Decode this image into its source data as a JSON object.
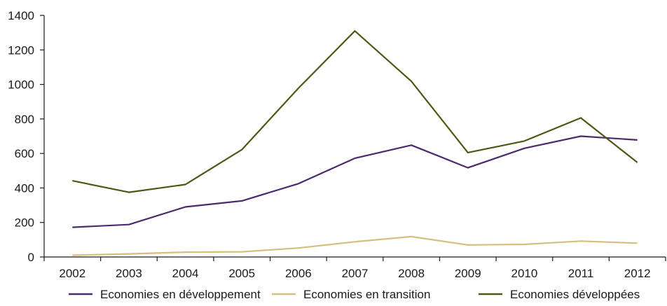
{
  "chart_data": {
    "type": "line",
    "categories": [
      "2002",
      "2003",
      "2004",
      "2005",
      "2006",
      "2007",
      "2008",
      "2009",
      "2010",
      "2011",
      "2012"
    ],
    "series": [
      {
        "name": "Economies en développement",
        "color": "#4b2a6e",
        "values": [
          172,
          188,
          290,
          325,
          425,
          572,
          648,
          517,
          630,
          700,
          678
        ]
      },
      {
        "name": "Economies en transition",
        "color": "#d4bf7e",
        "values": [
          10,
          18,
          28,
          30,
          52,
          88,
          118,
          70,
          73,
          92,
          80
        ]
      },
      {
        "name": "Economies développées",
        "color": "#4a5a14",
        "values": [
          442,
          375,
          420,
          622,
          978,
          1310,
          1018,
          605,
          672,
          806,
          548
        ]
      }
    ],
    "ylim": [
      0,
      1400
    ],
    "yticks": [
      0,
      200,
      400,
      600,
      800,
      1000,
      1200,
      1400
    ],
    "legend_position": "bottom",
    "grid": false
  }
}
